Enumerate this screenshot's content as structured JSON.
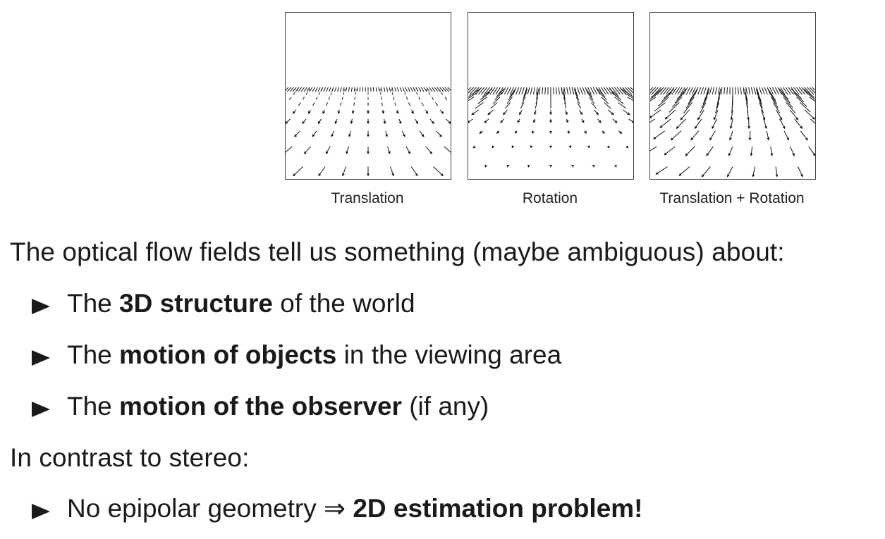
{
  "figure": {
    "panels": [
      {
        "caption": "Translation"
      },
      {
        "caption": "Rotation"
      },
      {
        "caption": "Translation + Rotation"
      }
    ]
  },
  "intro": "The optical flow fields tell us something (maybe ambiguous) about:",
  "bullets": [
    {
      "pre": "The ",
      "bold": "3D structure",
      "post": " of the world"
    },
    {
      "pre": "The ",
      "bold": "motion of objects",
      "post": " in the viewing area"
    },
    {
      "pre": "The ",
      "bold": "motion of the observer",
      "post": " (if any)"
    }
  ],
  "contrast": "In contrast to stereo:",
  "bullet2": {
    "pre": "No epipolar geometry ",
    "arrow": "⇒",
    "bold": "2D estimation problem!"
  }
}
